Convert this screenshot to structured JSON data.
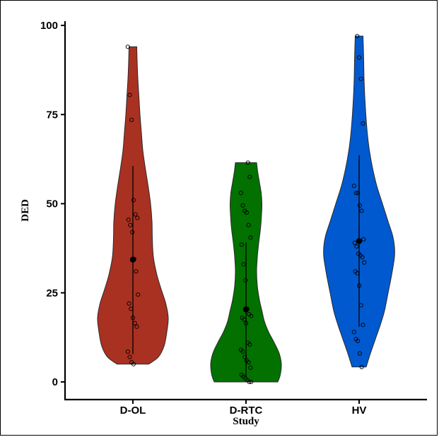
{
  "chart_data": {
    "type": "violin",
    "title": "",
    "xlabel": "Study",
    "ylabel": "DED",
    "ylim": [
      0,
      100
    ],
    "yticks": [
      0,
      25,
      50,
      75,
      100
    ],
    "categories": [
      "D-OL",
      "D-RTC",
      "HV"
    ],
    "grid": false,
    "legend": "none",
    "series": [
      {
        "category": "D-OL",
        "color": "#a93122",
        "min": 5,
        "max": 94,
        "mean": 34.3,
        "sd_low": 7.8,
        "sd_high": 60.6,
        "density": [
          [
            5,
            0.45
          ],
          [
            7,
            0.72
          ],
          [
            10,
            0.88
          ],
          [
            14,
            0.96
          ],
          [
            18,
            1.0
          ],
          [
            22,
            0.93
          ],
          [
            26,
            0.8
          ],
          [
            30,
            0.68
          ],
          [
            35,
            0.58
          ],
          [
            40,
            0.55
          ],
          [
            45,
            0.54
          ],
          [
            50,
            0.5
          ],
          [
            55,
            0.43
          ],
          [
            60,
            0.35
          ],
          [
            65,
            0.28
          ],
          [
            70,
            0.24
          ],
          [
            75,
            0.2
          ],
          [
            80,
            0.17
          ],
          [
            85,
            0.14
          ],
          [
            90,
            0.12
          ],
          [
            94,
            0.11
          ]
        ],
        "points": [
          94,
          80.5,
          73.5,
          51,
          47,
          46,
          45.5,
          44,
          42,
          34.5,
          31,
          24.5,
          22,
          20.5,
          18,
          16.5,
          15.5,
          8.5,
          7,
          5.5,
          5
        ]
      },
      {
        "category": "D-RTC",
        "color": "#027100",
        "min": 0,
        "max": 61.5,
        "mean": 20.3,
        "sd_low": 1.5,
        "sd_high": 39.1,
        "density": [
          [
            0,
            0.9
          ],
          [
            2,
            0.97
          ],
          [
            5,
            1.0
          ],
          [
            8,
            0.94
          ],
          [
            11,
            0.8
          ],
          [
            14,
            0.64
          ],
          [
            17,
            0.52
          ],
          [
            20,
            0.45
          ],
          [
            23,
            0.38
          ],
          [
            27,
            0.32
          ],
          [
            31,
            0.3
          ],
          [
            35,
            0.32
          ],
          [
            39,
            0.36
          ],
          [
            43,
            0.41
          ],
          [
            47,
            0.44
          ],
          [
            50,
            0.45
          ],
          [
            53,
            0.43
          ],
          [
            56,
            0.38
          ],
          [
            59,
            0.33
          ],
          [
            61.5,
            0.3
          ]
        ],
        "points": [
          61.5,
          57.5,
          53,
          49.5,
          48,
          47.5,
          44,
          40.5,
          38.5,
          33,
          28.5,
          20.5,
          19,
          18.5,
          18,
          17.5,
          16.5,
          11,
          10.5,
          9,
          8.5,
          7,
          6,
          5.5,
          4,
          2,
          1.5,
          1,
          0.5,
          0,
          0
        ]
      },
      {
        "category": "HV",
        "color": "#0159cf",
        "min": 4.2,
        "max": 97,
        "mean": 39.5,
        "sd_low": 15.5,
        "sd_high": 63.6,
        "density": [
          [
            4.2,
            0.2
          ],
          [
            8,
            0.32
          ],
          [
            12,
            0.46
          ],
          [
            16,
            0.6
          ],
          [
            20,
            0.72
          ],
          [
            25,
            0.82
          ],
          [
            30,
            0.92
          ],
          [
            35,
            1.0
          ],
          [
            38,
            1.0
          ],
          [
            41,
            0.95
          ],
          [
            45,
            0.82
          ],
          [
            50,
            0.66
          ],
          [
            55,
            0.5
          ],
          [
            60,
            0.38
          ],
          [
            65,
            0.29
          ],
          [
            70,
            0.23
          ],
          [
            75,
            0.19
          ],
          [
            80,
            0.16
          ],
          [
            85,
            0.14
          ],
          [
            90,
            0.13
          ],
          [
            94,
            0.12
          ],
          [
            97,
            0.11
          ]
        ],
        "points": [
          97,
          91,
          85,
          72.5,
          55,
          53,
          53,
          49.5,
          48,
          40,
          39,
          38,
          36,
          35.5,
          35,
          33.5,
          31,
          30.5,
          27,
          21.5,
          16,
          14,
          12,
          11.5,
          8,
          4.2
        ]
      }
    ]
  }
}
